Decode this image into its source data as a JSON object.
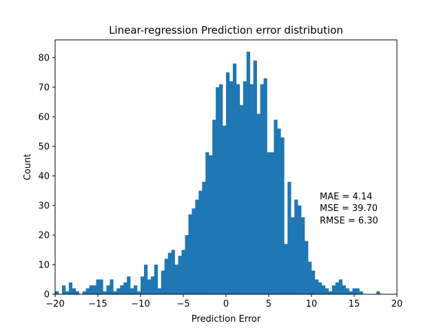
{
  "chart_data": {
    "type": "bar",
    "title": "Linear-regression Prediction error distribution",
    "xlabel": "Prediction Error",
    "ylabel": "Count",
    "xlim": [
      -20,
      20
    ],
    "ylim": [
      0,
      86
    ],
    "xticks": [
      -20,
      -15,
      -10,
      -5,
      0,
      5,
      10,
      15,
      20
    ],
    "yticks": [
      0,
      10,
      20,
      30,
      40,
      50,
      60,
      70,
      80
    ],
    "bar_color": "#1f77b4",
    "bin_width": 0.4,
    "bin_start": -20,
    "values": [
      1,
      0,
      3,
      1,
      4,
      2,
      1,
      0,
      1,
      2,
      3,
      3,
      5,
      5,
      1,
      3,
      5,
      1,
      2,
      3,
      4,
      6,
      2,
      3,
      1,
      6,
      10,
      5,
      6,
      10,
      2,
      8,
      12,
      14,
      15,
      10,
      13,
      15,
      20,
      27,
      29,
      32,
      35,
      38,
      48,
      47,
      59,
      70,
      71,
      57,
      75,
      72,
      78,
      71,
      64,
      72,
      82,
      71,
      79,
      61,
      71,
      73,
      48,
      48,
      59,
      56,
      53,
      17,
      38,
      26,
      32,
      30,
      26,
      18,
      11,
      8,
      5,
      4,
      3,
      2,
      1,
      3,
      4,
      5,
      3,
      2,
      1,
      2,
      2,
      1,
      0,
      0,
      0,
      0,
      1,
      0,
      0,
      0,
      0,
      0
    ],
    "annotation": [
      "MAE = 4.14",
      "MSE = 39.70",
      "RMSE = 6.30"
    ]
  }
}
